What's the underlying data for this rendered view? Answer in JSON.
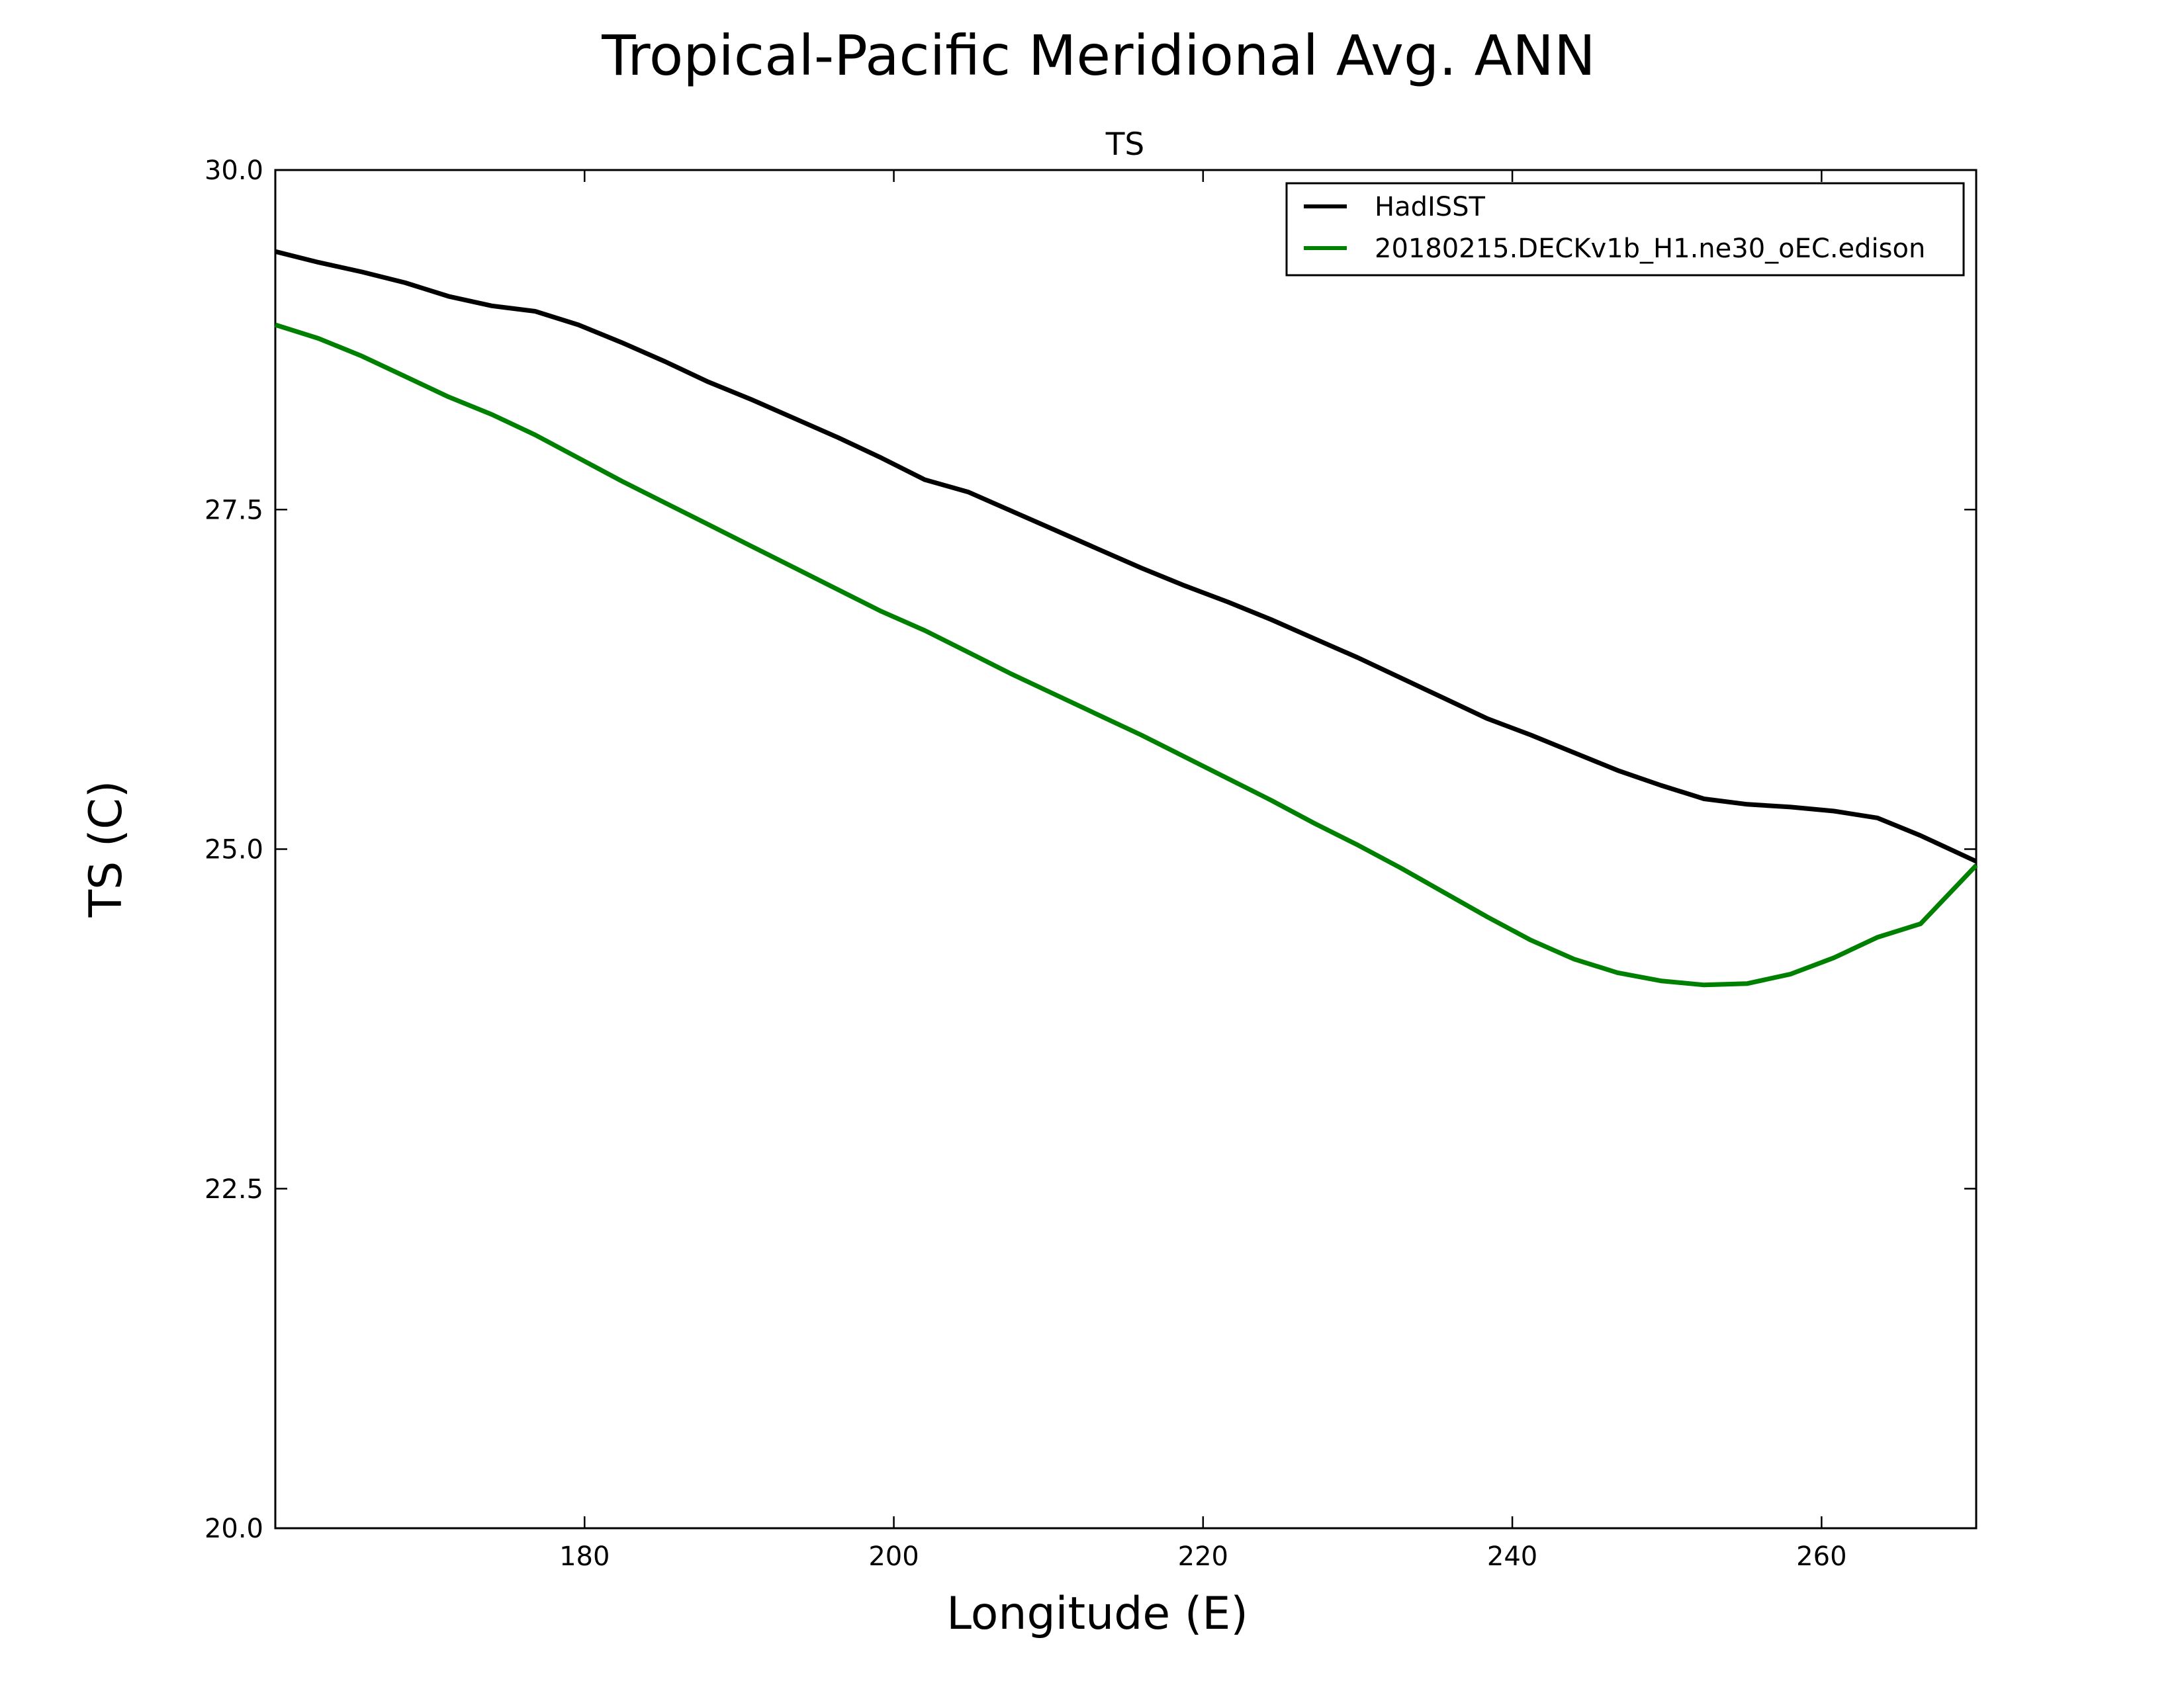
{
  "chart_data": {
    "type": "line",
    "title": "Tropical-Pacific Meridional Avg. ANN",
    "subtitle": "TS",
    "xlabel": "Longitude (E)",
    "ylabel": "TS (C)",
    "xlim": [
      160,
      270
    ],
    "ylim": [
      20.0,
      30.0
    ],
    "xticks": [
      180,
      200,
      220,
      240,
      260
    ],
    "xtick_labels": [
      "180",
      "200",
      "220",
      "240",
      "260"
    ],
    "yticks": [
      20.0,
      22.5,
      25.0,
      27.5,
      30.0
    ],
    "ytick_labels": [
      "20.0",
      "22.5",
      "25.0",
      "27.5",
      "30.0"
    ],
    "grid": false,
    "legend_position": "top-right",
    "series": [
      {
        "name": "HadISST",
        "color": "#000000",
        "x": [
          160.0,
          162.8,
          165.6,
          168.4,
          171.2,
          174.0,
          176.8,
          179.6,
          182.4,
          185.2,
          188.0,
          190.8,
          193.6,
          196.4,
          199.2,
          202.0,
          204.8,
          207.6,
          210.4,
          213.2,
          216.0,
          218.8,
          221.6,
          224.4,
          227.2,
          230.0,
          232.8,
          235.6,
          238.4,
          241.2,
          244.0,
          246.8,
          249.6,
          252.4,
          255.2,
          258.0,
          260.8,
          263.6,
          266.4,
          270.0
        ],
        "y": [
          29.4,
          29.32,
          29.25,
          29.17,
          29.07,
          29.0,
          28.96,
          28.86,
          28.73,
          28.59,
          28.44,
          28.31,
          28.17,
          28.03,
          27.88,
          27.72,
          27.63,
          27.49,
          27.35,
          27.21,
          27.07,
          26.94,
          26.82,
          26.69,
          26.55,
          26.41,
          26.26,
          26.11,
          25.96,
          25.84,
          25.71,
          25.58,
          25.47,
          25.37,
          25.33,
          25.31,
          25.28,
          25.23,
          25.1,
          24.91
        ]
      },
      {
        "name": "20180215.DECKv1b_H1.ne30_oEC.edison",
        "color": "#008000",
        "x": [
          160.0,
          162.8,
          165.6,
          168.4,
          171.2,
          174.0,
          176.8,
          179.6,
          182.4,
          185.2,
          188.0,
          190.8,
          193.6,
          196.4,
          199.2,
          202.0,
          204.8,
          207.6,
          210.4,
          213.2,
          216.0,
          218.8,
          221.6,
          224.4,
          227.2,
          230.0,
          232.8,
          235.6,
          238.4,
          241.2,
          244.0,
          246.8,
          249.6,
          252.4,
          255.2,
          258.0,
          260.8,
          263.6,
          266.4,
          270.0
        ],
        "y": [
          28.86,
          28.76,
          28.63,
          28.48,
          28.33,
          28.2,
          28.05,
          27.88,
          27.71,
          27.55,
          27.39,
          27.23,
          27.07,
          26.91,
          26.75,
          26.61,
          26.45,
          26.29,
          26.14,
          25.99,
          25.84,
          25.68,
          25.52,
          25.36,
          25.19,
          25.03,
          24.86,
          24.68,
          24.5,
          24.33,
          24.19,
          24.09,
          24.03,
          24.0,
          24.01,
          24.08,
          24.2,
          24.35,
          24.45,
          24.88
        ]
      }
    ]
  }
}
